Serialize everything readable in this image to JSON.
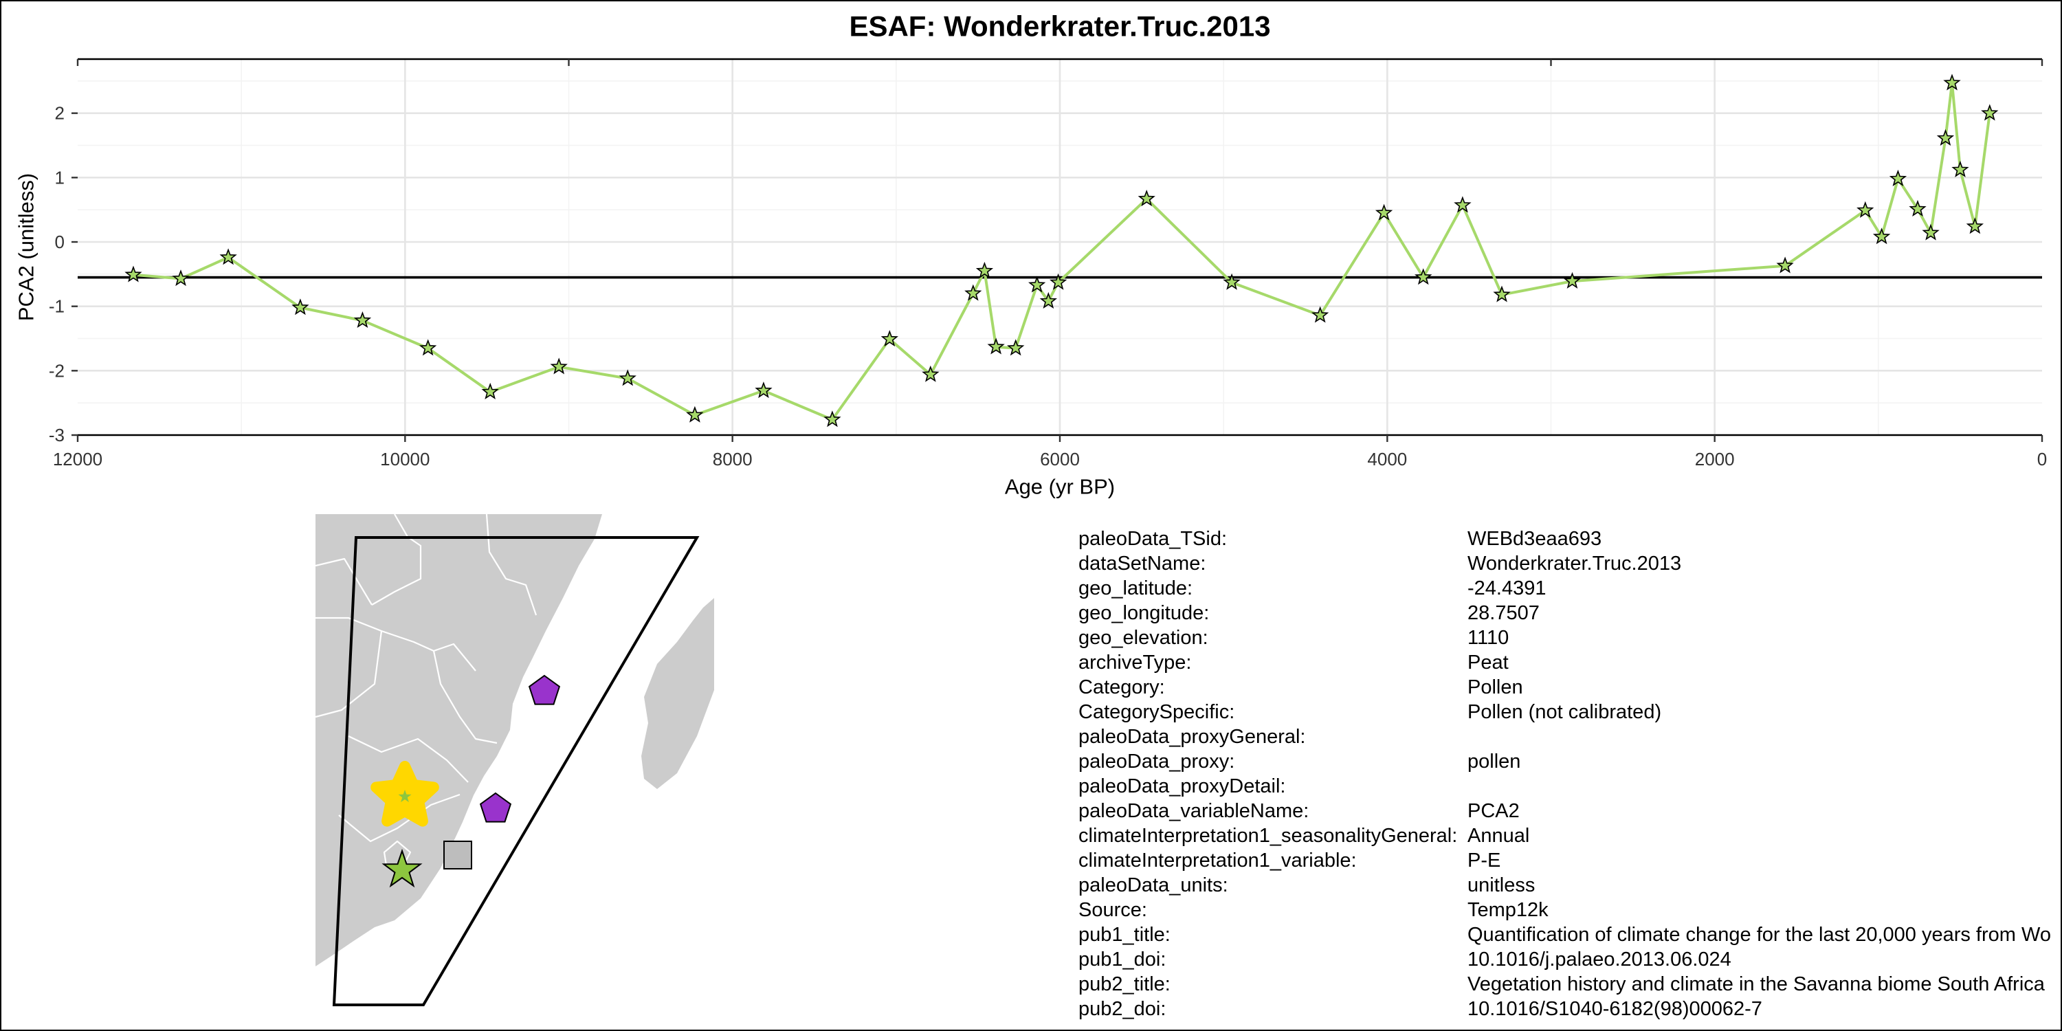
{
  "chart_data": {
    "type": "line",
    "title": "ESAF: Wonderkrater.Truc.2013",
    "xlabel": "Age (yr BP)",
    "ylabel": "PCA2 (unitless)",
    "xlim": [
      12000,
      0
    ],
    "ylim": [
      -3,
      2.84
    ],
    "x_ticks": [
      12000,
      10000,
      8000,
      6000,
      4000,
      2000,
      0
    ],
    "y_ticks": [
      2,
      1,
      0,
      -1,
      -2,
      -3
    ],
    "top_axis_ticks": [
      12000,
      9000,
      3000,
      0
    ],
    "grid": true,
    "reference_line": -0.55,
    "series": [
      {
        "marker": "star",
        "x": [
          11660,
          11370,
          11080,
          10640,
          10260,
          9860,
          9480,
          9060,
          8640,
          8230,
          7810,
          7390,
          7040,
          6790,
          6530,
          6460,
          6390,
          6270,
          6140,
          6070,
          6010,
          5470,
          4950,
          4410,
          4020,
          3780,
          3540,
          3300,
          2870,
          1570,
          1080,
          980,
          880,
          760,
          680,
          590,
          550,
          500,
          410,
          320
        ],
        "y": [
          -0.51,
          -0.57,
          -0.24,
          -1.02,
          -1.22,
          -1.65,
          -2.33,
          -1.94,
          -2.12,
          -2.69,
          -2.31,
          -2.76,
          -1.51,
          -2.06,
          -0.8,
          -0.45,
          -1.63,
          -1.65,
          -0.67,
          -0.92,
          -0.63,
          0.67,
          -0.63,
          -1.14,
          0.45,
          -0.55,
          0.57,
          -0.82,
          -0.61,
          -0.37,
          0.49,
          0.08,
          0.98,
          0.51,
          0.14,
          1.61,
          2.47,
          1.12,
          0.24,
          2.0
        ]
      }
    ],
    "colors": {
      "line": "#a6d96a",
      "marker_fill": "#a6d96a",
      "reference_line": "#000000"
    }
  },
  "map": {
    "land_color": "#cccccc",
    "border_color": "#ffffff",
    "markers": [
      {
        "icon": "star",
        "color": "#ffd700"
      },
      {
        "icon": "star",
        "color": "#8dc63f"
      },
      {
        "icon": "star",
        "color": "#8dc63f"
      },
      {
        "icon": "square",
        "color": "#bdbdbd"
      },
      {
        "icon": "pentagon",
        "color": "#9933cc"
      },
      {
        "icon": "pentagon",
        "color": "#9933cc"
      }
    ]
  },
  "metadata": [
    {
      "label": "paleoData_TSid:",
      "value": "WEBd3eaa693"
    },
    {
      "label": "dataSetName:",
      "value": "Wonderkrater.Truc.2013"
    },
    {
      "label": "geo_latitude:",
      "value": "-24.4391"
    },
    {
      "label": "geo_longitude:",
      "value": "28.7507"
    },
    {
      "label": "geo_elevation:",
      "value": "1110"
    },
    {
      "label": "archiveType:",
      "value": "Peat"
    },
    {
      "label": "Category:",
      "value": "Pollen"
    },
    {
      "label": "CategorySpecific:",
      "value": "Pollen (not calibrated)"
    },
    {
      "label": "paleoData_proxyGeneral:",
      "value": ""
    },
    {
      "label": "paleoData_proxy:",
      "value": "pollen"
    },
    {
      "label": "paleoData_proxyDetail:",
      "value": ""
    },
    {
      "label": "paleoData_variableName:",
      "value": "PCA2"
    },
    {
      "label": "climateInterpretation1_seasonalityGeneral:",
      "value": "Annual"
    },
    {
      "label": "climateInterpretation1_variable:",
      "value": "P-E"
    },
    {
      "label": "paleoData_units:",
      "value": "unitless"
    },
    {
      "label": "Source:",
      "value": "Temp12k"
    },
    {
      "label": "pub1_title:",
      "value": "Quantification of climate change for the last 20,000 years from Wo"
    },
    {
      "label": "pub1_doi:",
      "value": "10.1016/j.palaeo.2013.06.024"
    },
    {
      "label": "pub2_title:",
      "value": "Vegetation history and climate in the Savanna biome South Africa"
    },
    {
      "label": "pub2_doi:",
      "value": "10.1016/S1040-6182(98)00062-7"
    }
  ]
}
